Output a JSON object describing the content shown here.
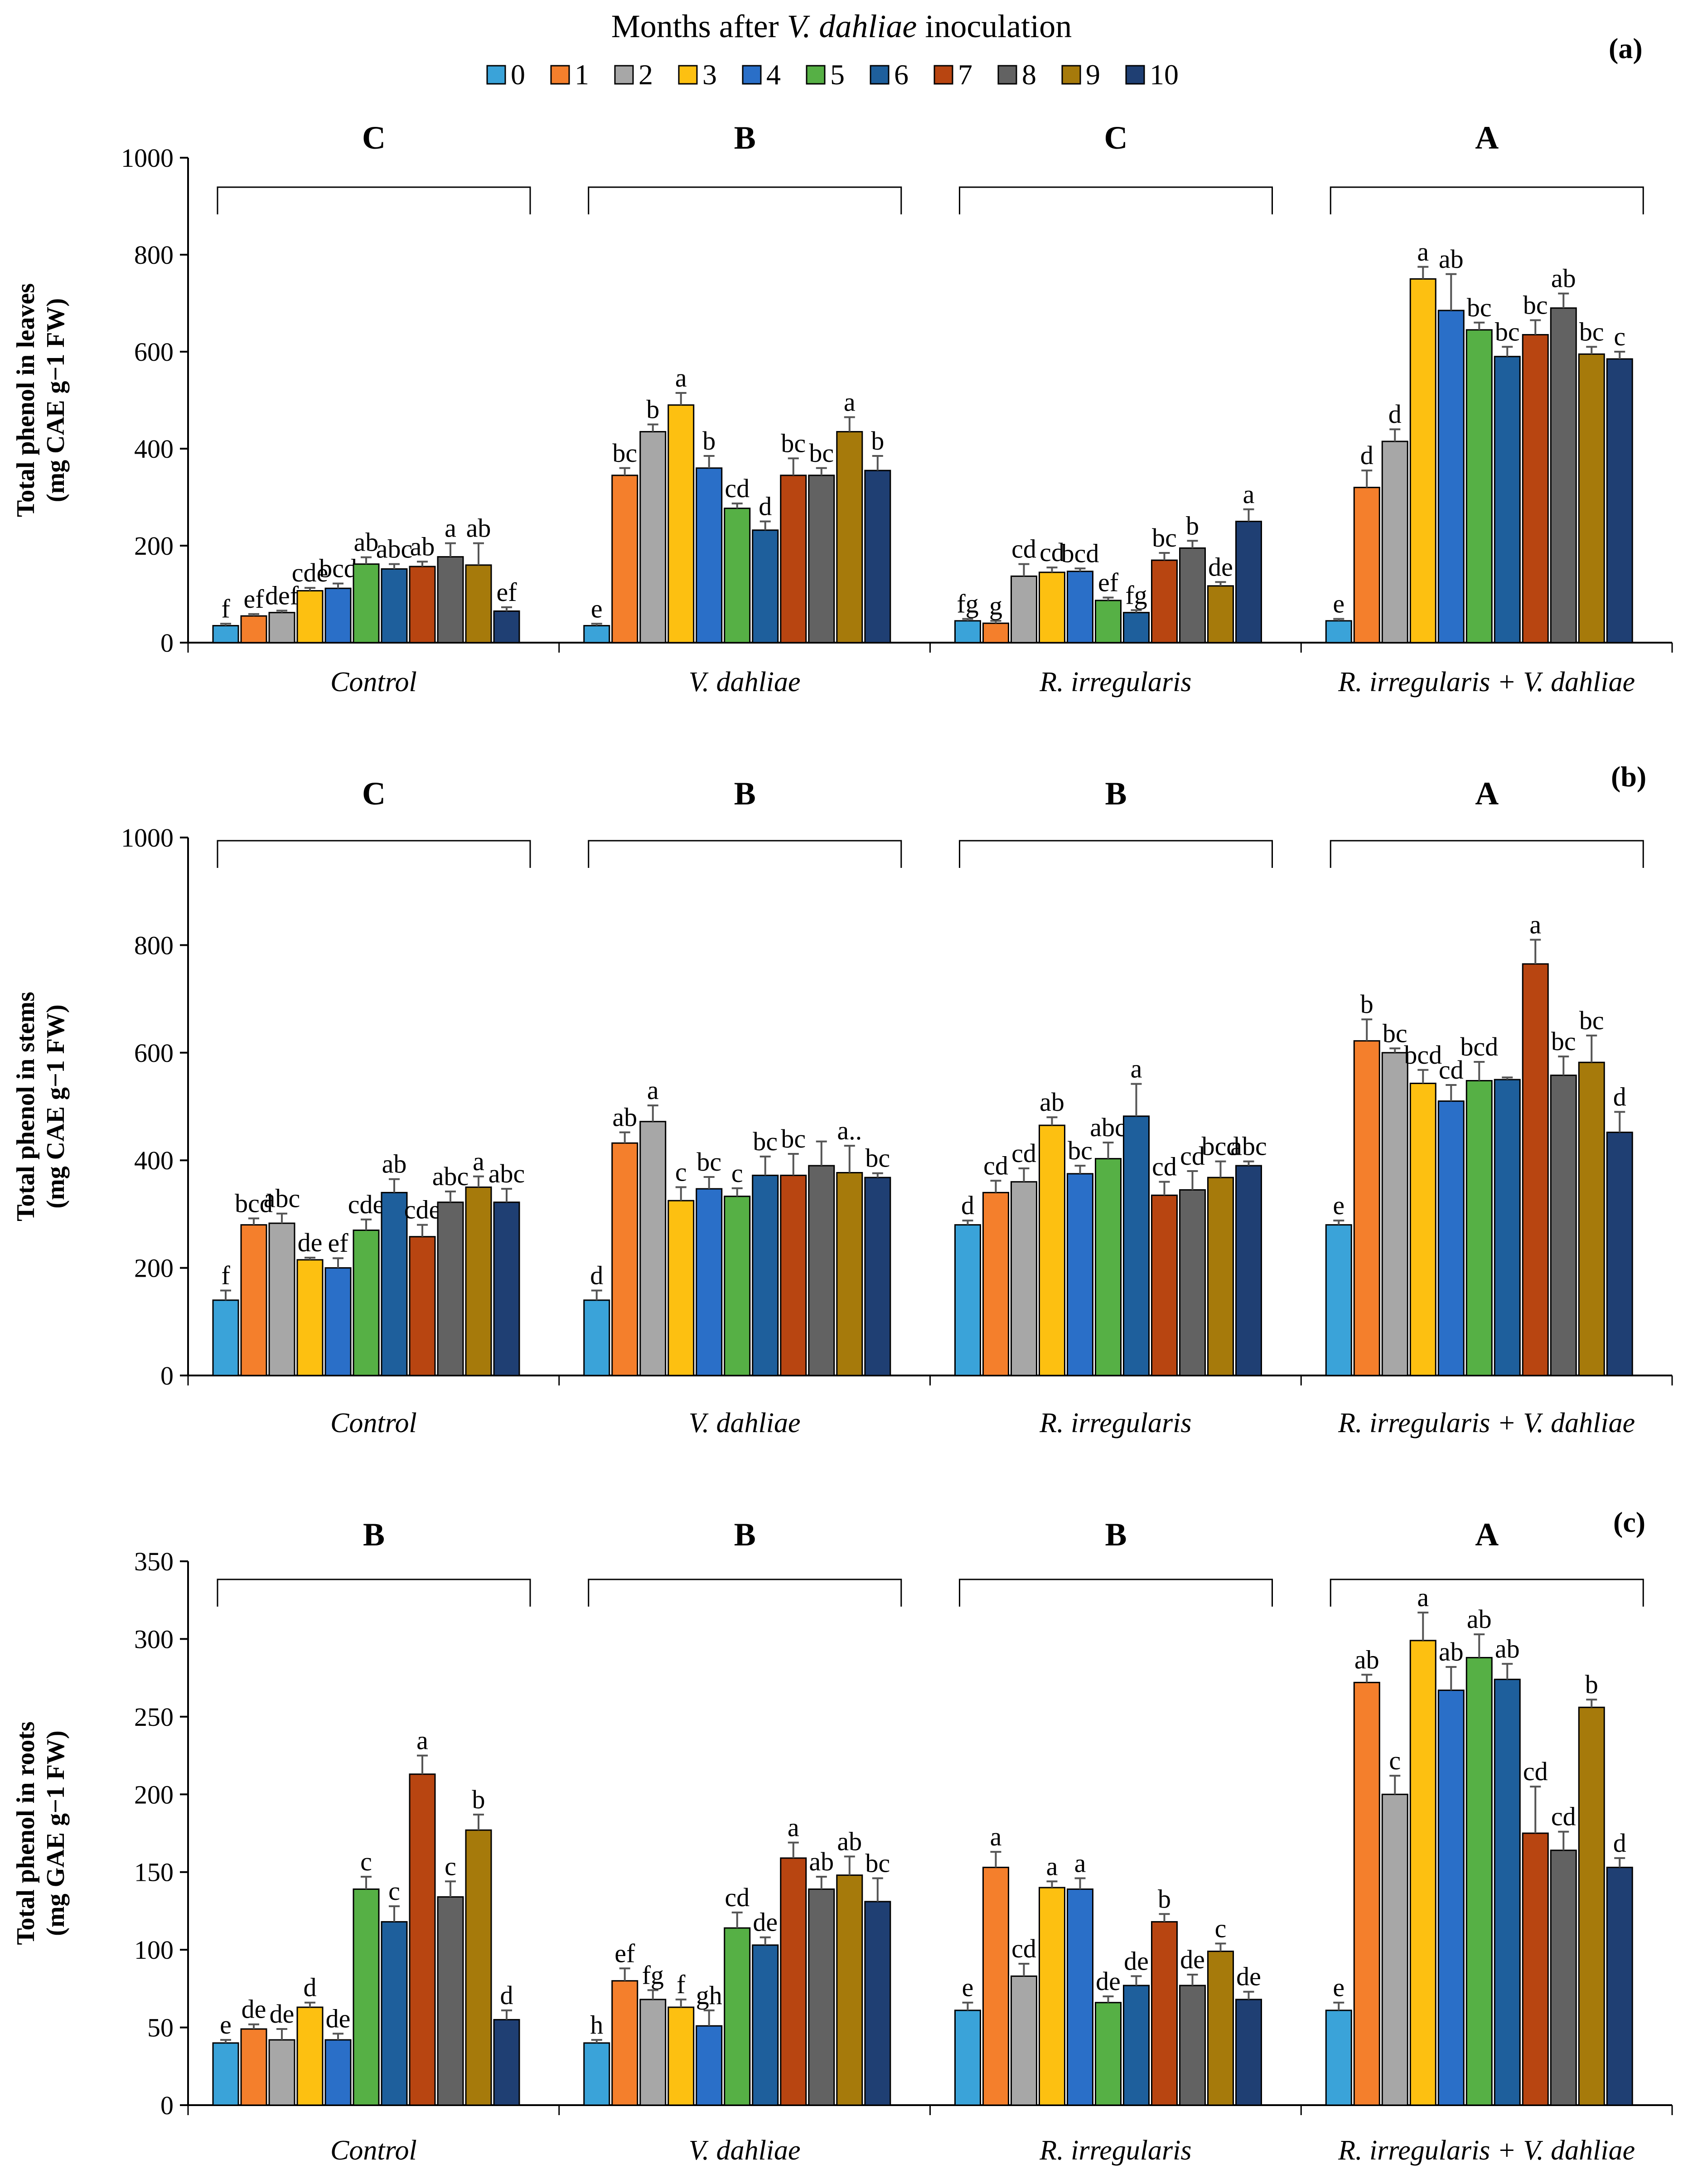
{
  "legend": {
    "title_prefix": "Months after ",
    "title_italic": "V. dahliae",
    "title_suffix": " inoculation",
    "entries": [
      "0",
      "1",
      "2",
      "3",
      "4",
      "5",
      "6",
      "7",
      "8",
      "9",
      "10"
    ]
  },
  "series_colors": [
    "#3aa3d9",
    "#f47f2c",
    "#a7a7a7",
    "#fdc011",
    "#2a6fc8",
    "#56b045",
    "#1e5f9c",
    "#b84511",
    "#626262",
    "#a67a0b",
    "#1f3f73"
  ],
  "chart_data": [
    {
      "type": "bar",
      "panel": "(a)",
      "ylabel_line1": "Total phenol in leaves",
      "ylabel_line2": "(mg CAE g−1 FW)",
      "ylim": [
        0,
        1000
      ],
      "yticks": [
        "0",
        "200",
        "400",
        "600",
        "800",
        "1000"
      ],
      "ytick_values": [
        0,
        200,
        400,
        600,
        800,
        1000
      ],
      "categories": [
        "Control",
        "V. dahliae",
        "R. irregularis",
        "R. irregularis + V. dahliae"
      ],
      "group_letters": [
        "C",
        "B",
        "C",
        "A"
      ],
      "series_names": [
        "0",
        "1",
        "2",
        "3",
        "4",
        "5",
        "6",
        "7",
        "8",
        "9",
        "10"
      ],
      "values": [
        [
          35,
          55,
          62,
          107,
          112,
          162,
          152,
          157,
          177,
          160,
          65
        ],
        [
          35,
          345,
          435,
          490,
          360,
          277,
          232,
          345,
          345,
          435,
          355
        ],
        [
          45,
          40,
          137,
          145,
          147,
          87,
          62,
          170,
          195,
          117,
          250
        ],
        [
          45,
          320,
          415,
          750,
          685,
          645,
          590,
          635,
          690,
          595,
          585
        ]
      ],
      "errors": [
        [
          4,
          4,
          4,
          6,
          10,
          14,
          10,
          10,
          28,
          45,
          8
        ],
        [
          4,
          15,
          15,
          25,
          25,
          10,
          18,
          35,
          15,
          30,
          30
        ],
        [
          4,
          5,
          25,
          10,
          6,
          6,
          5,
          15,
          15,
          8,
          25
        ],
        [
          4,
          35,
          25,
          25,
          75,
          15,
          20,
          30,
          30,
          15,
          15
        ]
      ],
      "letters": [
        [
          "f",
          "ef",
          "def",
          "cde",
          "bcd",
          "ab",
          "abc",
          "ab",
          "a",
          "ab",
          "ef"
        ],
        [
          "e",
          "bc",
          "b",
          "a",
          "b",
          "cd",
          "d",
          "bc",
          "bc",
          "a",
          "b"
        ],
        [
          "fg",
          "g",
          "cd",
          "cd",
          "bcd",
          "ef",
          "fg",
          "bc",
          "b",
          "de",
          "a"
        ],
        [
          "e",
          "d",
          "d",
          "a",
          "ab",
          "bc",
          "bc",
          "bc",
          "ab",
          "bc",
          "c"
        ]
      ]
    },
    {
      "type": "bar",
      "panel": "(b)",
      "ylabel_line1": "Total phenol in stems",
      "ylabel_line2": "(mg CAE g−1 FW)",
      "ylim": [
        0,
        1000
      ],
      "yticks": [
        "0",
        "200",
        "400",
        "600",
        "800",
        "1000"
      ],
      "ytick_values": [
        0,
        200,
        400,
        600,
        800,
        1000
      ],
      "categories": [
        "Control",
        "V. dahliae",
        "R. irregularis",
        "R. irregularis + V. dahliae"
      ],
      "group_letters": [
        "C",
        "B",
        "B",
        "A"
      ],
      "series_names": [
        "0",
        "1",
        "2",
        "3",
        "4",
        "5",
        "6",
        "7",
        "8",
        "9",
        "10"
      ],
      "values": [
        [
          140,
          280,
          283,
          215,
          200,
          270,
          340,
          258,
          322,
          350,
          322
        ],
        [
          140,
          432,
          472,
          325,
          347,
          333,
          372,
          372,
          390,
          377,
          368
        ],
        [
          280,
          340,
          360,
          465,
          375,
          403,
          482,
          335,
          345,
          368,
          390
        ],
        [
          280,
          622,
          600,
          543,
          510,
          548,
          550,
          765,
          558,
          582,
          452
        ]
      ],
      "errors": [
        [
          18,
          12,
          18,
          4,
          18,
          20,
          25,
          22,
          20,
          20,
          25
        ],
        [
          18,
          20,
          30,
          25,
          22,
          15,
          35,
          40,
          45,
          50,
          8
        ],
        [
          8,
          22,
          25,
          15,
          15,
          30,
          60,
          25,
          35,
          30,
          8
        ],
        [
          8,
          40,
          8,
          25,
          30,
          35,
          4,
          45,
          35,
          50,
          38
        ]
      ],
      "letters": [
        [
          "f",
          "bcd",
          "abc",
          "de",
          "ef",
          "cde",
          "ab",
          "cde",
          "abc",
          "a",
          "abc"
        ],
        [
          "d",
          "ab",
          "a",
          "c",
          "bc",
          "c",
          "bc",
          "bc",
          "",
          "a..",
          "bc"
        ],
        [
          "d",
          "cd",
          "cd",
          "ab",
          "bc",
          "abc",
          "a",
          "cd",
          "cd",
          "bcd",
          "abc"
        ],
        [
          "e",
          "b",
          "bc",
          "bcd",
          "cd",
          "bcd",
          "",
          "a",
          "bc",
          "bc",
          "d"
        ]
      ]
    },
    {
      "type": "bar",
      "panel": "(c)",
      "ylabel_line1": "Total phenol in roots",
      "ylabel_line2": "(mg GAE g−1 FW)",
      "ylim": [
        0,
        350
      ],
      "yticks": [
        "0",
        "50",
        "100",
        "150",
        "200",
        "250",
        "300",
        "350"
      ],
      "ytick_values": [
        0,
        50,
        100,
        150,
        200,
        250,
        300,
        350
      ],
      "categories": [
        "Control",
        "V. dahliae",
        "R. irregularis",
        "R. irregularis + V. dahliae"
      ],
      "group_letters": [
        "B",
        "B",
        "B",
        "A"
      ],
      "series_names": [
        "0",
        "1",
        "2",
        "3",
        "4",
        "5",
        "6",
        "7",
        "8",
        "9",
        "10"
      ],
      "values": [
        [
          40,
          49,
          42,
          63,
          42,
          139,
          118,
          213,
          134,
          177,
          55
        ],
        [
          40,
          80,
          68,
          63,
          51,
          114,
          103,
          159,
          139,
          148,
          131
        ],
        [
          61,
          153,
          83,
          140,
          139,
          66,
          77,
          118,
          77,
          99,
          68
        ],
        [
          61,
          272,
          200,
          299,
          267,
          288,
          274,
          175,
          164,
          256,
          153
        ]
      ],
      "errors": [
        [
          2,
          3,
          7,
          3,
          4,
          8,
          10,
          12,
          10,
          10,
          6
        ],
        [
          2,
          8,
          6,
          5,
          10,
          10,
          5,
          10,
          8,
          12,
          15
        ],
        [
          5,
          10,
          8,
          4,
          7,
          4,
          6,
          5,
          7,
          5,
          5
        ],
        [
          5,
          5,
          12,
          18,
          15,
          15,
          10,
          30,
          12,
          5,
          6
        ]
      ],
      "letters": [
        [
          "e",
          "de",
          "de",
          "d",
          "de",
          "c",
          "c",
          "a",
          "c",
          "b",
          "d"
        ],
        [
          "h",
          "ef",
          "fg",
          "f",
          "gh",
          "cd",
          "de",
          "a",
          "ab",
          "ab",
          "bc"
        ],
        [
          "e",
          "a",
          "cd",
          "a",
          "a",
          "de",
          "de",
          "b",
          "de",
          "c",
          "de"
        ],
        [
          "e",
          "ab",
          "c",
          "a",
          "ab",
          "ab",
          "ab",
          "cd",
          "cd",
          "b",
          "d"
        ]
      ]
    }
  ]
}
